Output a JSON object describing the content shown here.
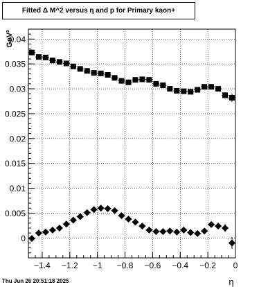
{
  "title": "Fitted Δ M^2 versus η and p for Primary kaon+",
  "timestamp": "Thu Jun 26 20:51:18 2025",
  "chart_data": {
    "type": "scatter",
    "title": "Fitted Δ M^2 versus η and p for Primary kaon+",
    "xlabel": "η",
    "ylabel": "GeV²",
    "xlim": [
      -1.5,
      0.0
    ],
    "ylim": [
      -0.004,
      0.042
    ],
    "grid": true,
    "xticks": [
      -1.4,
      -1.2,
      -1.0,
      -0.8,
      -0.6,
      -0.4,
      -0.2,
      0.0
    ],
    "xtick_labels": [
      "−1.4",
      "−1.2",
      "−1",
      "−0.8",
      "−0.6",
      "−0.4",
      "−0.2",
      "0"
    ],
    "yticks": [
      0.0,
      0.005,
      0.01,
      0.015,
      0.02,
      0.025,
      0.03,
      0.035,
      0.04
    ],
    "ytick_labels": [
      "0",
      "0.005",
      "0.01",
      "0.015",
      "0.02",
      "0.025",
      "0.03",
      "0.035",
      "0.04"
    ],
    "series": [
      {
        "marker": "square",
        "color": "#000000",
        "x": [
          -1.475,
          -1.425,
          -1.375,
          -1.325,
          -1.275,
          -1.225,
          -1.175,
          -1.125,
          -1.075,
          -1.025,
          -0.975,
          -0.925,
          -0.875,
          -0.825,
          -0.775,
          -0.725,
          -0.675,
          -0.625,
          -0.575,
          -0.525,
          -0.475,
          -0.425,
          -0.375,
          -0.325,
          -0.275,
          -0.225,
          -0.175,
          -0.125,
          -0.075,
          -0.025
        ],
        "y": [
          0.0373,
          0.0364,
          0.0363,
          0.0357,
          0.0354,
          0.0351,
          0.0345,
          0.034,
          0.0336,
          0.0332,
          0.0331,
          0.0328,
          0.0322,
          0.0316,
          0.0313,
          0.0318,
          0.0319,
          0.0318,
          0.031,
          0.0307,
          0.03,
          0.0296,
          0.0295,
          0.0294,
          0.0298,
          0.0304,
          0.0304,
          0.03,
          0.0287,
          0.0282
        ],
        "yerr": [
          0.0006,
          0.0004,
          0.0004,
          0.0004,
          0.0004,
          0.0004,
          0.0004,
          0.0004,
          0.0004,
          0.0004,
          0.0004,
          0.0004,
          0.0004,
          0.0004,
          0.0004,
          0.0004,
          0.0004,
          0.0004,
          0.0004,
          0.0004,
          0.0004,
          0.0004,
          0.0004,
          0.0004,
          0.0004,
          0.0004,
          0.0005,
          0.0005,
          0.0006,
          0.0008
        ]
      },
      {
        "marker": "diamond",
        "color": "#000000",
        "x": [
          -1.475,
          -1.425,
          -1.375,
          -1.325,
          -1.275,
          -1.225,
          -1.175,
          -1.125,
          -1.075,
          -1.025,
          -0.975,
          -0.925,
          -0.875,
          -0.825,
          -0.775,
          -0.725,
          -0.675,
          -0.625,
          -0.575,
          -0.525,
          -0.475,
          -0.425,
          -0.375,
          -0.325,
          -0.275,
          -0.225,
          -0.175,
          -0.125,
          -0.075,
          -0.025
        ],
        "y": [
          -0.0001,
          0.001,
          0.0012,
          0.0016,
          0.002,
          0.0028,
          0.0036,
          0.0043,
          0.0051,
          0.0057,
          0.006,
          0.0059,
          0.0055,
          0.0045,
          0.0038,
          0.0032,
          0.0024,
          0.0016,
          0.0013,
          0.0013,
          0.0014,
          0.0012,
          0.0016,
          0.0011,
          0.0009,
          0.0014,
          0.0027,
          0.0024,
          0.002,
          -0.001
        ],
        "yerr": [
          0.0003,
          0.0003,
          0.0003,
          0.0003,
          0.0003,
          0.0003,
          0.0003,
          0.0003,
          0.0003,
          0.0003,
          0.0003,
          0.0003,
          0.0003,
          0.0003,
          0.0003,
          0.0003,
          0.0003,
          0.0003,
          0.0003,
          0.0003,
          0.0003,
          0.0003,
          0.0003,
          0.0003,
          0.0003,
          0.0004,
          0.0005,
          0.0006,
          0.0008,
          0.0012
        ]
      }
    ]
  }
}
